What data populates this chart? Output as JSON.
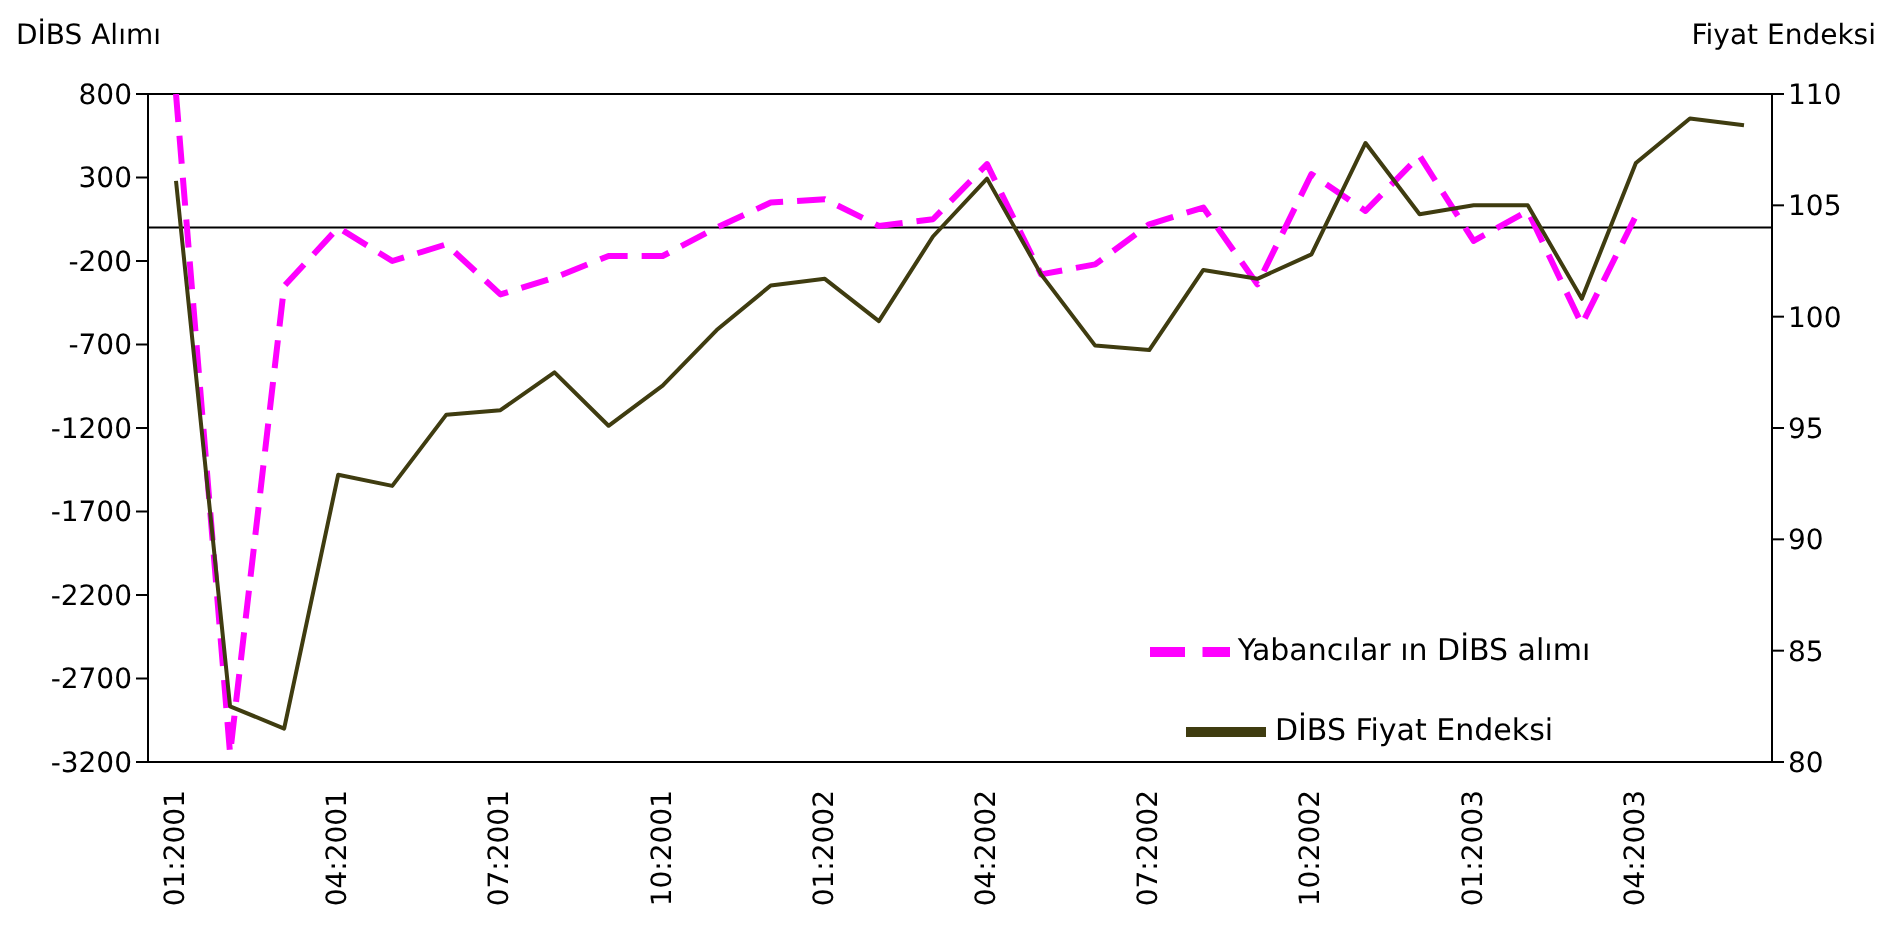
{
  "chart_data": {
    "type": "line",
    "ylabel": "DİBS Alımı",
    "y2label": "Fiyat Endeksi",
    "categories": [
      "01:2001",
      null,
      null,
      "04:2001",
      null,
      null,
      "07:2001",
      null,
      null,
      "10:2001",
      null,
      null,
      "01:2002",
      null,
      null,
      "04:2002",
      null,
      null,
      "07:2002",
      null,
      null,
      "10:2002",
      null,
      null,
      "01:2003",
      null,
      null,
      "04:2003",
      null,
      null
    ],
    "series": [
      {
        "name": "Yabancılar ın DİBS alımı",
        "color": "#ff00ff",
        "line_style": "dashed",
        "values": [
          800,
          -3150,
          -350,
          0,
          -200,
          -100,
          -400,
          -300,
          -170,
          -170,
          0,
          150,
          170,
          10,
          50,
          380,
          -280,
          -220,
          20,
          120,
          -340,
          320,
          100,
          430,
          -80,
          100,
          -580,
          70,
          null,
          null
        ]
      },
      {
        "name": "DİBS Fiyat Endeksi",
        "color": "#3f3c10",
        "line_style": "solid",
        "axis": "y2",
        "values": [
          106.1,
          82.5,
          81.5,
          92.9,
          92.4,
          95.6,
          95.8,
          97.5,
          95.1,
          96.9,
          99.4,
          101.4,
          101.7,
          99.8,
          103.6,
          106.2,
          101.9,
          98.7,
          98.5,
          102.1,
          101.7,
          102.8,
          107.8,
          104.6,
          105.0,
          105.0,
          100.8,
          106.9,
          108.9,
          108.6
        ]
      }
    ],
    "ylim": [
      -3200,
      800
    ],
    "yticks": [
      -3200,
      -2700,
      -2200,
      -1700,
      -1200,
      -700,
      -200,
      300,
      800
    ],
    "y2lim": [
      80,
      110
    ],
    "y2ticks": [
      80,
      85,
      90,
      95,
      100,
      105,
      110
    ],
    "ref_lines": [
      {
        "axis": "y",
        "value": 0,
        "color": "#000000"
      }
    ],
    "legend": "bottom right",
    "marker": "none",
    "grid": false
  }
}
